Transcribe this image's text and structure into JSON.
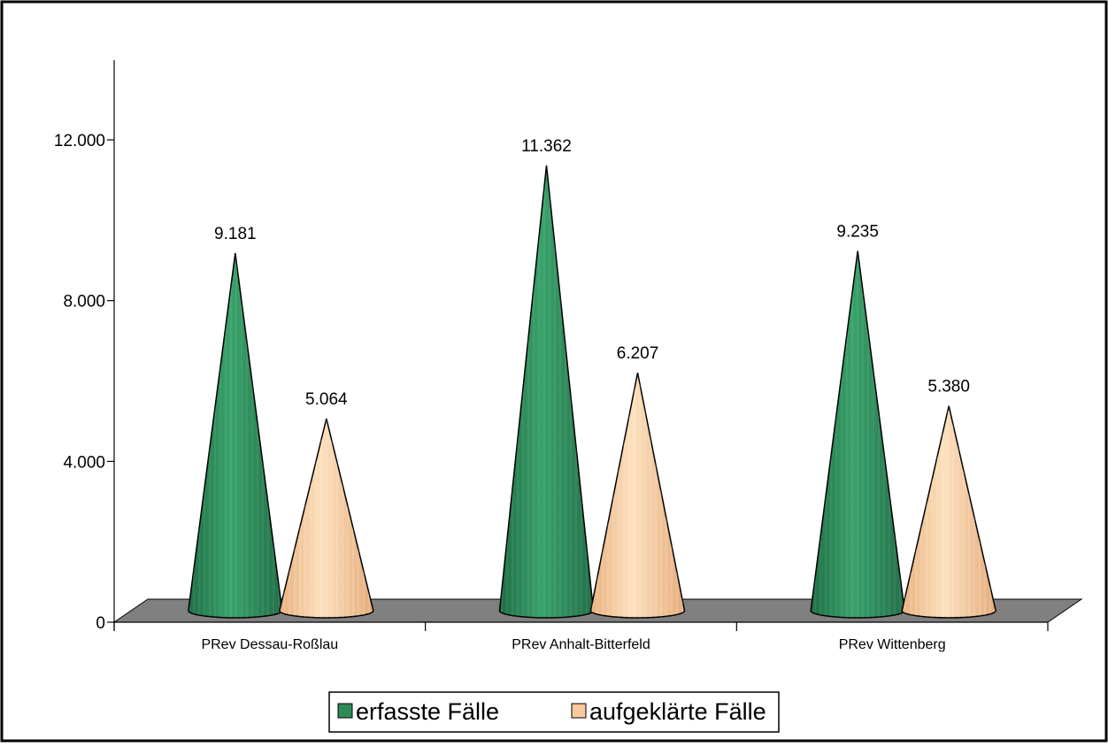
{
  "chart_data": {
    "type": "bar",
    "title": "",
    "xlabel": "",
    "ylabel": "",
    "categories": [
      "PRev Dessau-Roßlau",
      "PRev Anhalt-Bitterfeld",
      "PRev Wittenberg"
    ],
    "series": [
      {
        "name": "erfasste Fälle",
        "values": [
          9181,
          11362,
          9235
        ],
        "value_labels": [
          "9.181",
          "11.362",
          "9.235"
        ],
        "color": "#2e8b57"
      },
      {
        "name": "aufgeklärte Fälle",
        "values": [
          5064,
          6207,
          5380
        ],
        "value_labels": [
          "5.064",
          "6.207",
          "5.380"
        ],
        "color": "#f9c89b"
      }
    ],
    "ylim": [
      0,
      14000
    ],
    "yticks": [
      0,
      4000,
      8000,
      12000
    ],
    "ytick_labels": [
      "0",
      "4.000",
      "8.000",
      "12.000"
    ],
    "mark_shape": "cone",
    "floor_color": "#808080",
    "grid": false,
    "legend_position": "bottom"
  }
}
